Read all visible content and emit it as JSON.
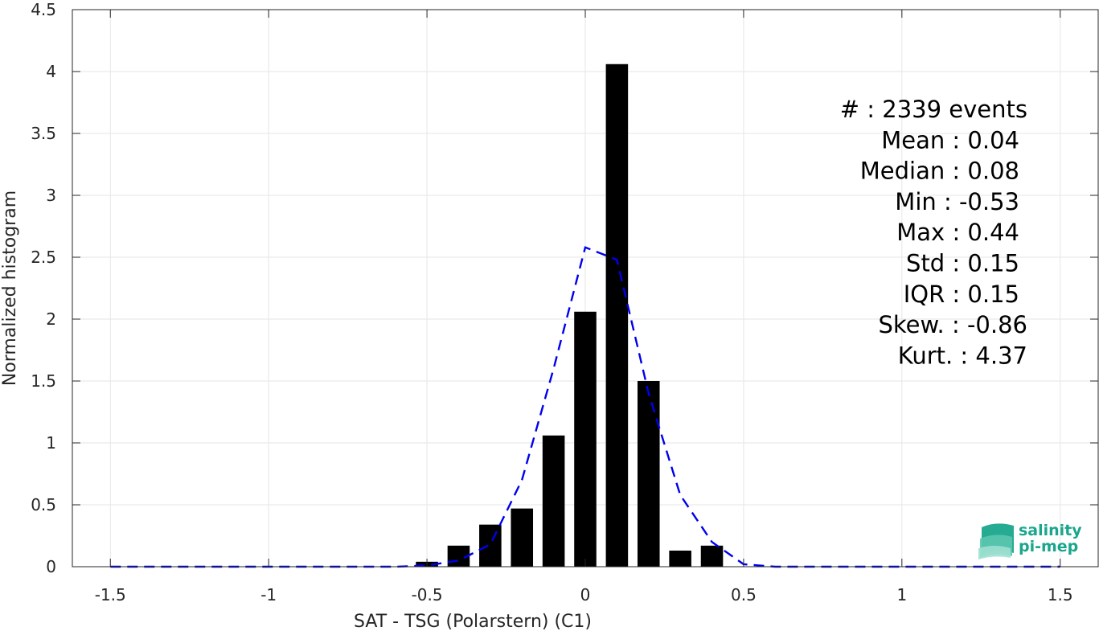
{
  "chart_data": {
    "type": "bar",
    "xlabel": "SAT - TSG (Polarstern) (C1)",
    "ylabel": "Normalized histogram",
    "xlim": [
      -1.62,
      1.62
    ],
    "ylim": [
      0,
      4.5
    ],
    "xticks": [
      -1.5,
      -1,
      -0.5,
      0,
      0.5,
      1,
      1.5
    ],
    "xtick_labels": [
      "-1.5",
      "-1",
      "-0.5",
      "0",
      "0.5",
      "1",
      "1.5"
    ],
    "yticks": [
      0,
      0.5,
      1,
      1.5,
      2,
      2.5,
      3,
      3.5,
      4,
      4.5
    ],
    "ytick_labels": [
      "0",
      "0.5",
      "1",
      "1.5",
      "2",
      "2.5",
      "3",
      "3.5",
      "4",
      "4.5"
    ],
    "grid": true,
    "bar_color": "#000000",
    "bar_width": 0.07,
    "bars": {
      "x": [
        -0.5,
        -0.4,
        -0.3,
        -0.2,
        -0.1,
        0.0,
        0.1,
        0.2,
        0.3,
        0.4
      ],
      "values": [
        0.04,
        0.17,
        0.34,
        0.47,
        1.06,
        2.06,
        4.06,
        1.5,
        0.13,
        0.17
      ]
    },
    "fit_line": {
      "color": "#0000ee",
      "style": "dashed",
      "x": [
        -1.5,
        -1.4,
        -1.3,
        -1.2,
        -1.1,
        -1.0,
        -0.9,
        -0.8,
        -0.7,
        -0.6,
        -0.5,
        -0.4,
        -0.3,
        -0.2,
        -0.1,
        0.0,
        0.1,
        0.2,
        0.3,
        0.4,
        0.5,
        0.6,
        0.7,
        0.8,
        0.9,
        1.0,
        1.1,
        1.2,
        1.3,
        1.4,
        1.5
      ],
      "y": [
        0,
        0,
        0,
        0,
        0,
        0,
        0,
        0,
        0,
        0,
        0.01,
        0.05,
        0.18,
        0.7,
        1.6,
        2.58,
        2.48,
        1.4,
        0.58,
        0.2,
        0.02,
        0,
        0,
        0,
        0,
        0,
        0,
        0,
        0,
        0,
        0
      ]
    },
    "stats": [
      "#  : 2339 events",
      "Mean : 0.04",
      "Median : 0.08",
      "Min : -0.53",
      "Max : 0.44",
      "Std : 0.15",
      "IQR : 0.15",
      "Skew. : -0.86",
      "Kurt. : 4.37"
    ]
  },
  "logo": {
    "line1": "salinity",
    "line2": "pi-mep",
    "color": "#1aa68c"
  }
}
